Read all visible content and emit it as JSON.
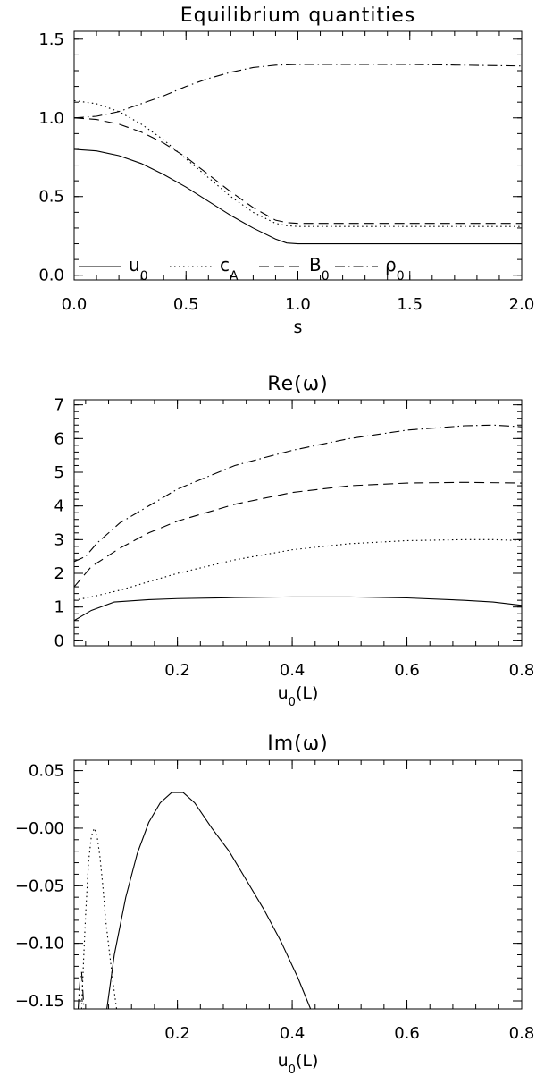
{
  "chart_data": [
    {
      "type": "line",
      "title": "Equilibrium quantities",
      "xlabel": "s",
      "ylabel": "",
      "xlim": [
        0,
        2
      ],
      "ylim": [
        -0.03,
        1.55
      ],
      "xticks": [
        0,
        0.5,
        1,
        1.5,
        2
      ],
      "xtick_labels": [
        "0.0",
        "0.5",
        "1.0",
        "1.5",
        "2.0"
      ],
      "yticks": [
        0,
        0.5,
        1,
        1.5
      ],
      "ytick_labels": [
        "0.0",
        "0.5",
        "1.0",
        "1.5"
      ],
      "legend_position": "bottom",
      "series": [
        {
          "name": "u_0",
          "base": "u",
          "sub": "0",
          "style": "solid",
          "x": [
            0,
            0.1,
            0.2,
            0.3,
            0.4,
            0.5,
            0.6,
            0.7,
            0.8,
            0.9,
            0.95,
            1.0,
            1.5,
            2.0
          ],
          "y": [
            0.8,
            0.79,
            0.76,
            0.71,
            0.64,
            0.56,
            0.47,
            0.38,
            0.3,
            0.23,
            0.205,
            0.2,
            0.2,
            0.2
          ]
        },
        {
          "name": "c_A",
          "base": "c",
          "sub": "A",
          "style": "dotted",
          "x": [
            0,
            0.1,
            0.2,
            0.3,
            0.4,
            0.5,
            0.6,
            0.7,
            0.8,
            0.9,
            0.95,
            1.0,
            1.5,
            2.0
          ],
          "y": [
            1.11,
            1.09,
            1.04,
            0.96,
            0.86,
            0.74,
            0.62,
            0.5,
            0.4,
            0.33,
            0.315,
            0.31,
            0.31,
            0.31
          ]
        },
        {
          "name": "B_0",
          "base": "B",
          "sub": "0",
          "style": "dashed",
          "x": [
            0,
            0.1,
            0.2,
            0.3,
            0.4,
            0.5,
            0.6,
            0.7,
            0.8,
            0.9,
            0.95,
            1.0,
            1.5,
            2.0
          ],
          "y": [
            1.0,
            0.99,
            0.96,
            0.91,
            0.84,
            0.75,
            0.64,
            0.53,
            0.43,
            0.35,
            0.335,
            0.33,
            0.33,
            0.33
          ]
        },
        {
          "name": "ρ_0",
          "base": "ρ",
          "sub": "0",
          "style": "dashdot",
          "x": [
            0,
            0.1,
            0.2,
            0.3,
            0.4,
            0.5,
            0.6,
            0.7,
            0.8,
            0.9,
            1.0,
            1.5,
            2.0
          ],
          "y": [
            1.0,
            1.01,
            1.04,
            1.09,
            1.14,
            1.2,
            1.25,
            1.29,
            1.32,
            1.335,
            1.34,
            1.34,
            1.33
          ]
        }
      ]
    },
    {
      "type": "line",
      "title": "Re(ω)",
      "xlabel": "u_0(L)",
      "ylabel": "",
      "xlim": [
        0.02,
        0.8
      ],
      "ylim": [
        -0.15,
        7.15
      ],
      "xticks": [
        0.2,
        0.4,
        0.6,
        0.8
      ],
      "xtick_labels": [
        "0.2",
        "0.4",
        "0.6",
        "0.8"
      ],
      "yticks": [
        0,
        1,
        2,
        3,
        4,
        5,
        6,
        7
      ],
      "ytick_labels": [
        "0",
        "1",
        "2",
        "3",
        "4",
        "5",
        "6",
        "7"
      ],
      "series": [
        {
          "style": "solid",
          "x": [
            0.02,
            0.05,
            0.09,
            0.15,
            0.2,
            0.3,
            0.4,
            0.5,
            0.6,
            0.7,
            0.75,
            0.8
          ],
          "y": [
            0.6,
            0.9,
            1.15,
            1.22,
            1.25,
            1.28,
            1.3,
            1.3,
            1.27,
            1.2,
            1.15,
            1.05
          ]
        },
        {
          "style": "dotted",
          "x": [
            0.02,
            0.05,
            0.1,
            0.15,
            0.2,
            0.3,
            0.4,
            0.5,
            0.6,
            0.7,
            0.75,
            0.8
          ],
          "y": [
            1.2,
            1.3,
            1.5,
            1.75,
            2.0,
            2.4,
            2.7,
            2.88,
            2.97,
            3.0,
            3.0,
            2.97
          ]
        },
        {
          "style": "dashed",
          "x": [
            0.02,
            0.05,
            0.1,
            0.15,
            0.2,
            0.3,
            0.4,
            0.5,
            0.6,
            0.7,
            0.8
          ],
          "y": [
            1.6,
            2.2,
            2.75,
            3.2,
            3.55,
            4.05,
            4.4,
            4.6,
            4.68,
            4.7,
            4.68
          ]
        },
        {
          "style": "dashdot",
          "x": [
            0.02,
            0.04,
            0.06,
            0.1,
            0.15,
            0.2,
            0.3,
            0.4,
            0.5,
            0.6,
            0.7,
            0.75,
            0.8
          ],
          "y": [
            2.35,
            2.5,
            2.9,
            3.5,
            4.0,
            4.5,
            5.2,
            5.65,
            6.0,
            6.25,
            6.38,
            6.4,
            6.35
          ]
        }
      ]
    },
    {
      "type": "line",
      "title": "Im(ω)",
      "xlabel": "u_0(L)",
      "ylabel": "",
      "xlim": [
        0.02,
        0.8
      ],
      "ylim": [
        -0.157,
        0.059
      ],
      "xticks": [
        0.2,
        0.4,
        0.6,
        0.8
      ],
      "xtick_labels": [
        "0.2",
        "0.4",
        "0.6",
        "0.8"
      ],
      "yticks": [
        0.05,
        0.0,
        -0.05,
        -0.1,
        -0.15
      ],
      "ytick_labels": [
        "0.05",
        "−0.00",
        "−0.05",
        "−0.10",
        "−0.15"
      ],
      "series": [
        {
          "style": "solid",
          "x": [
            0.077,
            0.09,
            0.11,
            0.13,
            0.15,
            0.17,
            0.19,
            0.21,
            0.23,
            0.26,
            0.29,
            0.32,
            0.35,
            0.38,
            0.41,
            0.432
          ],
          "y": [
            -0.157,
            -0.11,
            -0.06,
            -0.022,
            0.005,
            0.022,
            0.031,
            0.031,
            0.022,
            0.0,
            -0.02,
            -0.045,
            -0.07,
            -0.098,
            -0.13,
            -0.157
          ]
        },
        {
          "style": "dotted",
          "x": [
            0.033,
            0.036,
            0.04,
            0.045,
            0.05,
            0.055,
            0.06,
            0.065,
            0.07,
            0.075,
            0.082,
            0.088,
            0.094
          ],
          "y": [
            -0.157,
            -0.12,
            -0.075,
            -0.03,
            -0.007,
            0.0,
            -0.007,
            -0.025,
            -0.05,
            -0.08,
            -0.11,
            -0.135,
            -0.157
          ]
        },
        {
          "style": "dashdot",
          "x": [
            0.027,
            0.029,
            0.031,
            0.033,
            0.035,
            0.037
          ],
          "y": [
            -0.157,
            -0.14,
            -0.128,
            -0.125,
            -0.14,
            -0.157
          ]
        }
      ]
    }
  ]
}
